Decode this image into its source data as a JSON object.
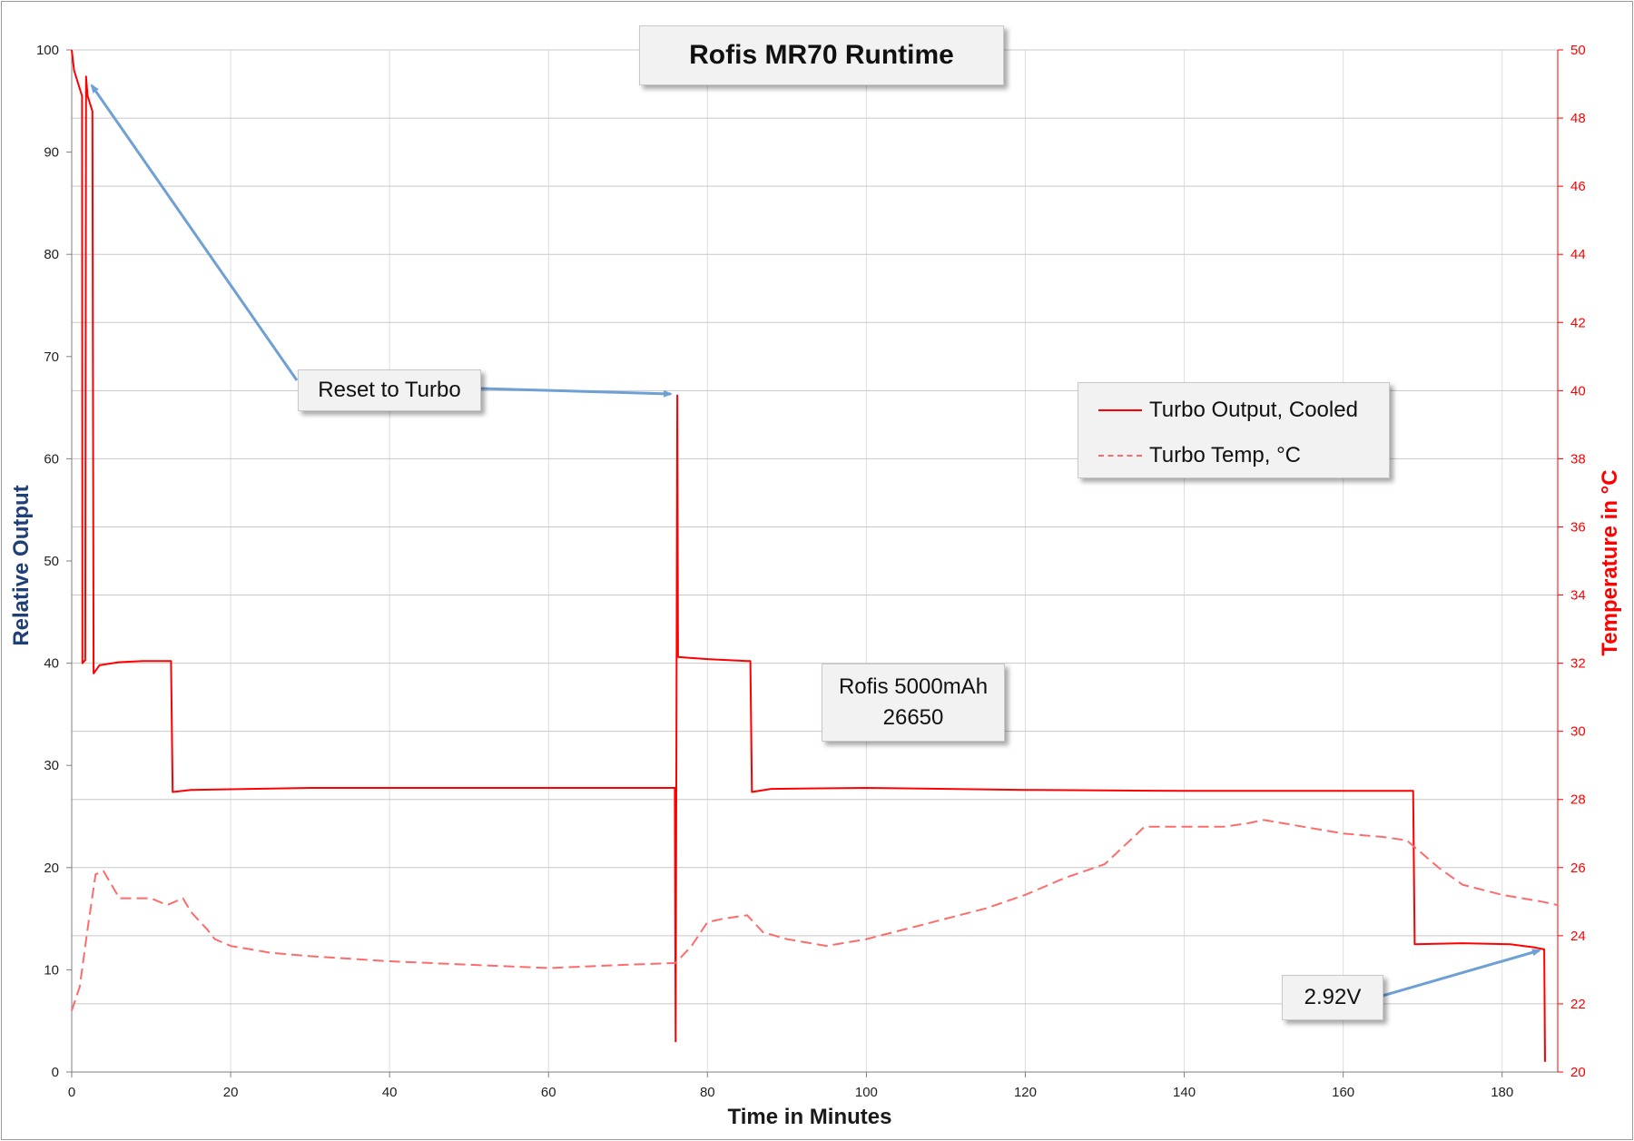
{
  "chart_data": {
    "type": "line",
    "title": "Rofis MR70 Runtime",
    "xlabel": "Time in Minutes",
    "ylabel": "Relative Output",
    "y2label": "Temperature in °C",
    "xlim": [
      0,
      187
    ],
    "ylim": [
      0,
      100
    ],
    "y2lim": [
      20,
      50
    ],
    "xticks": [
      0,
      20,
      40,
      60,
      80,
      100,
      120,
      140,
      160,
      180
    ],
    "yticks": [
      0,
      10,
      20,
      30,
      40,
      50,
      60,
      70,
      80,
      90,
      100
    ],
    "y2ticks": [
      20,
      22,
      24,
      26,
      28,
      30,
      32,
      34,
      36,
      38,
      40,
      42,
      44,
      46,
      48,
      50
    ],
    "grid": true,
    "legend_position": "right",
    "series": [
      {
        "name": "Turbo Output, Cooled",
        "axis": "left",
        "color": "#ff0000",
        "style": "solid",
        "points": [
          [
            0,
            100
          ],
          [
            0.3,
            98
          ],
          [
            0.7,
            97
          ],
          [
            1.1,
            96
          ],
          [
            1.3,
            95.5
          ],
          [
            1.35,
            40
          ],
          [
            1.7,
            40.3
          ],
          [
            1.8,
            97.4
          ],
          [
            2.0,
            95.5
          ],
          [
            2.2,
            95
          ],
          [
            2.6,
            94
          ],
          [
            2.75,
            39
          ],
          [
            3.5,
            39.8
          ],
          [
            6,
            40.1
          ],
          [
            9,
            40.2
          ],
          [
            12.5,
            40.2
          ],
          [
            12.7,
            27.4
          ],
          [
            15,
            27.6
          ],
          [
            30,
            27.8
          ],
          [
            75,
            27.8
          ],
          [
            75.9,
            27.8
          ],
          [
            76,
            3
          ],
          [
            76.2,
            66.2
          ],
          [
            76.3,
            40.6
          ],
          [
            80,
            40.4
          ],
          [
            85,
            40.2
          ],
          [
            85.4,
            40.2
          ],
          [
            85.6,
            27.4
          ],
          [
            88,
            27.7
          ],
          [
            100,
            27.8
          ],
          [
            120,
            27.6
          ],
          [
            140,
            27.5
          ],
          [
            160,
            27.5
          ],
          [
            168.8,
            27.5
          ],
          [
            169,
            12.5
          ],
          [
            175,
            12.6
          ],
          [
            181,
            12.5
          ],
          [
            184,
            12.2
          ],
          [
            185.3,
            12.0
          ],
          [
            185.4,
            1
          ]
        ]
      },
      {
        "name": "Turbo Temp, °C",
        "axis": "right",
        "color": "#ff6b6b",
        "style": "dashed",
        "points": [
          [
            0,
            21.8
          ],
          [
            1,
            22.5
          ],
          [
            2,
            24.2
          ],
          [
            3,
            25.8
          ],
          [
            4,
            25.9
          ],
          [
            5,
            25.5
          ],
          [
            6,
            25.1
          ],
          [
            10,
            25.1
          ],
          [
            12,
            24.9
          ],
          [
            14,
            25.1
          ],
          [
            15,
            24.7
          ],
          [
            17,
            24.2
          ],
          [
            18,
            23.9
          ],
          [
            20,
            23.7
          ],
          [
            25,
            23.5
          ],
          [
            30,
            23.4
          ],
          [
            40,
            23.25
          ],
          [
            50,
            23.15
          ],
          [
            60,
            23.05
          ],
          [
            70,
            23.15
          ],
          [
            76,
            23.2
          ],
          [
            78,
            23.7
          ],
          [
            80,
            24.4
          ],
          [
            82,
            24.5
          ],
          [
            85,
            24.6
          ],
          [
            87,
            24.1
          ],
          [
            90,
            23.9
          ],
          [
            95,
            23.7
          ],
          [
            100,
            23.9
          ],
          [
            105,
            24.2
          ],
          [
            110,
            24.5
          ],
          [
            115,
            24.8
          ],
          [
            120,
            25.2
          ],
          [
            125,
            25.7
          ],
          [
            130,
            26.1
          ],
          [
            135,
            27.2
          ],
          [
            140,
            27.2
          ],
          [
            145,
            27.2
          ],
          [
            148,
            27.3
          ],
          [
            150,
            27.4
          ],
          [
            155,
            27.2
          ],
          [
            160,
            27
          ],
          [
            165,
            26.9
          ],
          [
            168,
            26.8
          ],
          [
            170,
            26.4
          ],
          [
            172,
            26.0
          ],
          [
            175,
            25.5
          ],
          [
            180,
            25.2
          ],
          [
            185,
            25.0
          ],
          [
            187,
            24.9
          ]
        ]
      }
    ],
    "annotations": [
      {
        "text": "Reset to Turbo"
      },
      {
        "text": "Rofis 5000mAh"
      },
      {
        "text": "26650"
      },
      {
        "text": "2.92V"
      }
    ]
  },
  "legend": {
    "items": [
      "Turbo Output, Cooled",
      "Turbo Temp, °C"
    ]
  },
  "colors": {
    "output_line": "#ff0000",
    "temp_line": "#ff6b6b",
    "left_axis_label": "#1f3f77",
    "right_axis": "#ff0000",
    "arrow": "#6fa0d4",
    "grid": "#c8c8c8"
  }
}
